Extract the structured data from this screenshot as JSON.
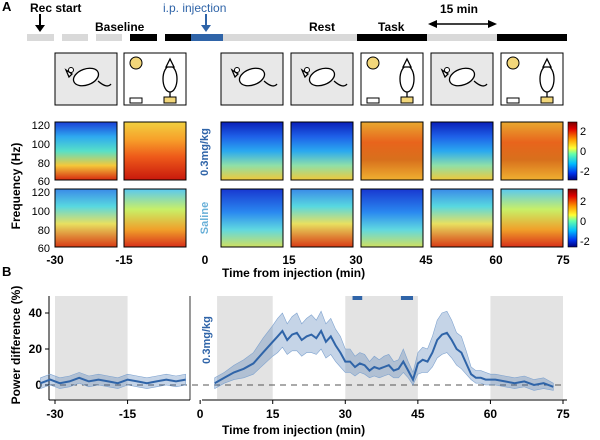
{
  "panel_a": {
    "label": "A",
    "rec_start": "Rec start",
    "injection": "i.p. injection",
    "baseline": "Baseline",
    "rest": "Rest",
    "task": "Task",
    "duration": "15 min",
    "dose_label": "0.3mg/kg",
    "saline_label": "Saline",
    "ylabel": "Frequency (Hz)",
    "yticks": [
      "120",
      "100",
      "80",
      "60"
    ],
    "colorbar_ticks": [
      "2",
      "0",
      "-2"
    ],
    "xticks": [
      "-30",
      "-15",
      "0",
      "15",
      "30",
      "45",
      "60",
      "75"
    ],
    "xlabel": "Time from injection (min)",
    "conditions": [
      "rest",
      "task",
      "rest",
      "rest",
      "task",
      "rest",
      "task"
    ],
    "colors": {
      "dose_blue": "#2f64a8",
      "saline_blue": "#69b0d8",
      "bar_black": "#000000",
      "bar_gray": "#d9d9d9",
      "panel_gray": "#e8e8e8"
    }
  },
  "panel_b": {
    "label": "B",
    "ylabel": "Power difference (%)",
    "xlabel": "Time from injection (min)",
    "dose_label": "0.3mg/kg",
    "yticks": [
      "40",
      "20",
      "0"
    ],
    "xticks": [
      "-30",
      "-15",
      "0",
      "15",
      "30",
      "45",
      "60",
      "75"
    ]
  },
  "chart_data": {
    "type": "line",
    "title": "",
    "xlabel": "Time from injection (min)",
    "ylabel": "Power difference (%)",
    "xlim": [
      -33,
      76
    ],
    "ylim": [
      -3,
      50
    ],
    "task_epochs": [
      [
        -30,
        -15
      ],
      [
        0,
        15
      ],
      [
        30,
        45
      ],
      [
        60,
        75
      ]
    ],
    "significance_bars": [
      [
        31.5,
        33.5
      ],
      [
        41.5,
        44
      ]
    ],
    "series": [
      {
        "name": "0.3mg/kg",
        "x": [
          -33,
          -31,
          -29,
          -27,
          -25,
          -23,
          -21,
          -19,
          -17,
          -15,
          -13,
          -11,
          -9,
          -7,
          -5,
          -3,
          3,
          5,
          7,
          9,
          11,
          13,
          15,
          16,
          17,
          18,
          19,
          20,
          21,
          22,
          23,
          24,
          25,
          26,
          27,
          28,
          29,
          30,
          31,
          32,
          33,
          34,
          35,
          36,
          37,
          38,
          39,
          40,
          41,
          42,
          43,
          44,
          45,
          46,
          47,
          48,
          49,
          50,
          51,
          52,
          53,
          54,
          55,
          56,
          57,
          58,
          59,
          60,
          61,
          63,
          65,
          67,
          69,
          71,
          73
        ],
        "y": [
          1,
          3,
          1,
          2,
          4,
          2,
          3,
          2,
          1,
          3,
          2,
          1,
          2,
          3,
          2,
          3,
          1,
          4,
          7,
          9,
          12,
          18,
          24,
          27,
          30,
          25,
          28,
          29,
          25,
          27,
          28,
          26,
          30,
          24,
          27,
          22,
          18,
          13,
          13,
          10,
          12,
          11,
          8,
          10,
          9,
          10,
          11,
          8,
          9,
          13,
          8,
          3,
          12,
          14,
          13,
          18,
          25,
          28,
          29,
          25,
          20,
          18,
          12,
          6,
          4,
          4,
          3,
          3,
          3,
          2,
          1,
          2,
          0,
          1,
          -1
        ],
        "lower": [
          -2,
          0,
          -2,
          -1,
          1,
          -1,
          0,
          -1,
          -2,
          0,
          -1,
          -2,
          -1,
          0,
          -1,
          0,
          -2,
          1,
          3,
          4,
          6,
          11,
          16,
          18,
          21,
          17,
          19,
          19,
          16,
          18,
          18,
          17,
          20,
          15,
          17,
          13,
          10,
          7,
          7,
          5,
          7,
          6,
          4,
          5,
          4,
          5,
          6,
          4,
          4,
          7,
          4,
          0,
          6,
          7,
          7,
          10,
          15,
          17,
          18,
          15,
          11,
          9,
          6,
          3,
          1,
          1,
          0,
          0,
          0,
          -1,
          -2,
          -1,
          -3,
          -2,
          -3
        ],
        "upper": [
          4,
          6,
          4,
          5,
          7,
          5,
          6,
          5,
          4,
          6,
          5,
          4,
          5,
          6,
          5,
          6,
          4,
          7,
          11,
          14,
          18,
          26,
          33,
          37,
          40,
          34,
          38,
          40,
          34,
          37,
          39,
          36,
          41,
          34,
          37,
          31,
          27,
          20,
          20,
          16,
          18,
          17,
          13,
          16,
          14,
          16,
          17,
          13,
          14,
          20,
          13,
          7,
          18,
          21,
          20,
          27,
          36,
          40,
          41,
          36,
          29,
          27,
          19,
          10,
          8,
          8,
          7,
          6,
          6,
          5,
          4,
          5,
          3,
          4,
          1
        ]
      }
    ],
    "baseline_dashed_y": 0
  }
}
